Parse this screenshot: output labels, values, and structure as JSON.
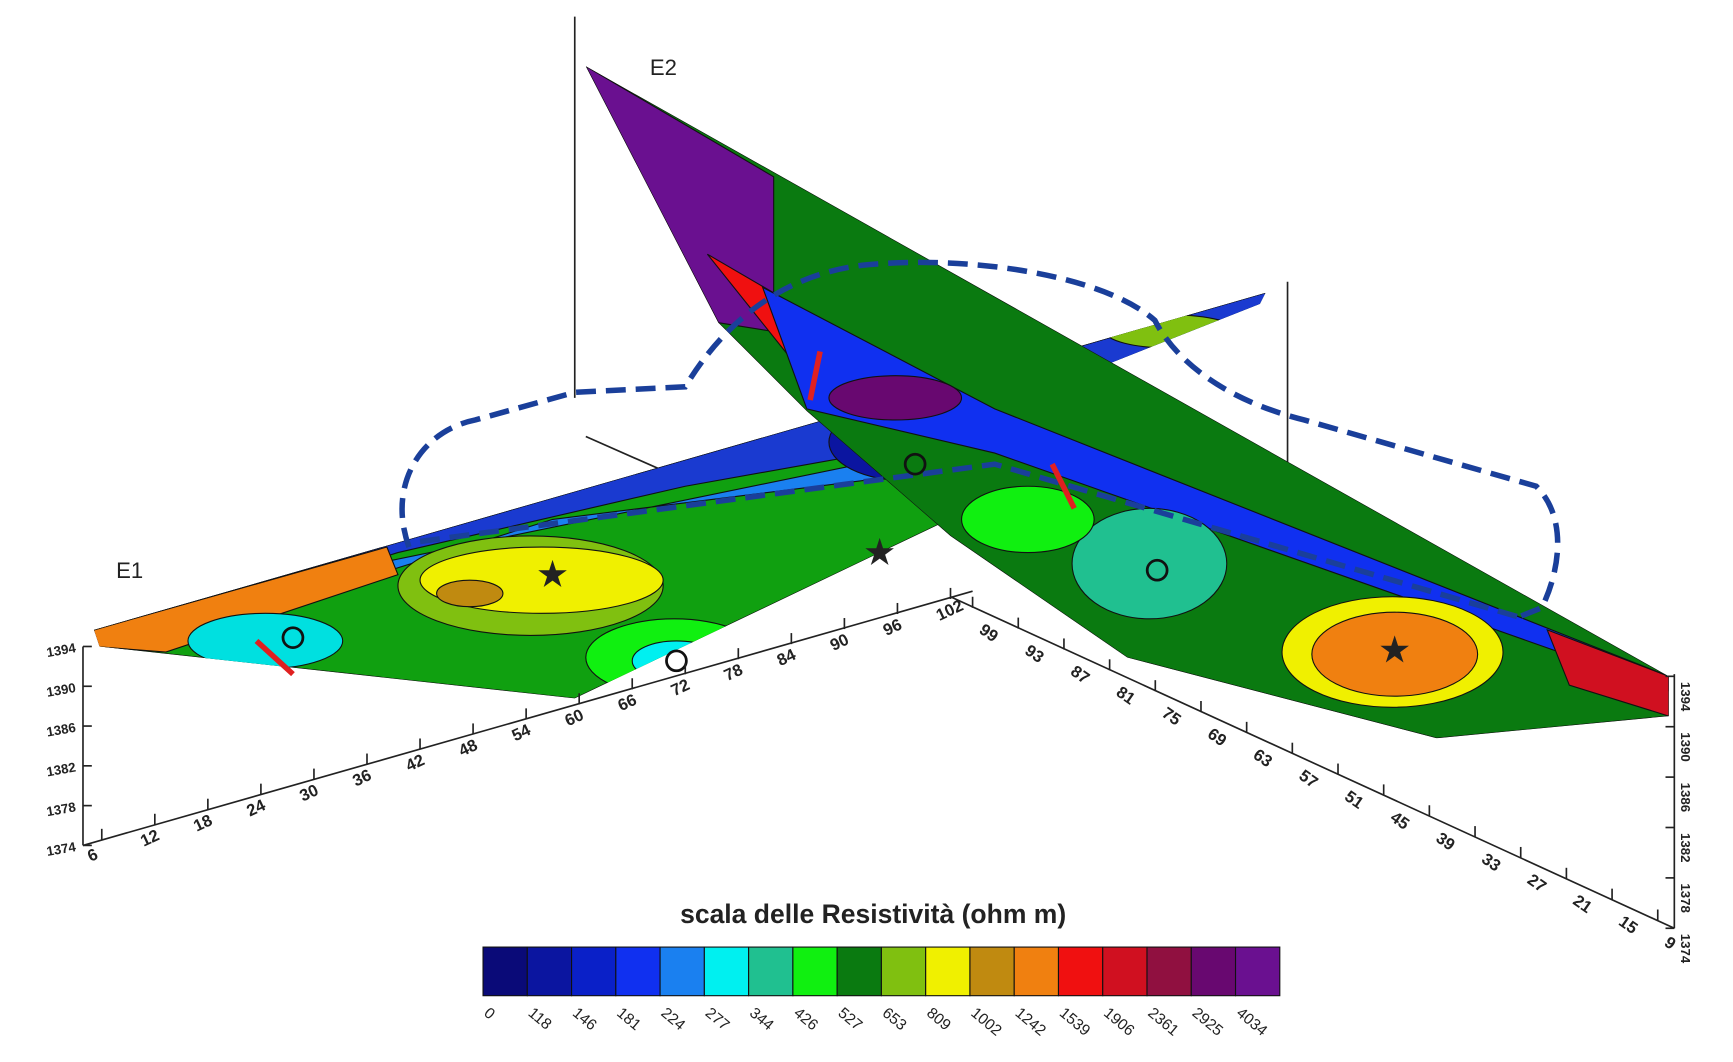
{
  "chart_data": {
    "type": "contour3d",
    "title": "scala delle Resistività (ohm m)",
    "profiles": [
      {
        "name": "E1",
        "xlim": [
          6,
          102
        ],
        "xticks": [
          6,
          12,
          18,
          24,
          30,
          36,
          42,
          48,
          54,
          60,
          66,
          72,
          78,
          84,
          90,
          96,
          102
        ],
        "ylim": [
          1374,
          1394
        ],
        "yticks": [
          1374,
          1378,
          1382,
          1386,
          1390,
          1394
        ]
      },
      {
        "name": "E2",
        "xlim": [
          9,
          99
        ],
        "xticks": [
          9,
          15,
          21,
          27,
          33,
          39,
          45,
          51,
          57,
          63,
          69,
          75,
          81,
          87,
          93,
          99
        ],
        "ylim": [
          1374,
          1394
        ],
        "yticks": [
          1374,
          1378,
          1382,
          1386,
          1390,
          1394
        ]
      }
    ],
    "colorbar": {
      "values": [
        0,
        118,
        146,
        181,
        224,
        277,
        344,
        426,
        527,
        653,
        809,
        1002,
        1242,
        1539,
        1906,
        2361,
        2925,
        4034
      ],
      "colors": [
        "#0a0a78",
        "#0b15a0",
        "#0a20c8",
        "#1030f0",
        "#1a80f0",
        "#00f0f0",
        "#20c090",
        "#10f010",
        "#0a7a10",
        "#80c010",
        "#f0f000",
        "#c08a10",
        "#f08010",
        "#f01010",
        "#d01020",
        "#901040",
        "#680870",
        "#6a1090"
      ]
    }
  }
}
